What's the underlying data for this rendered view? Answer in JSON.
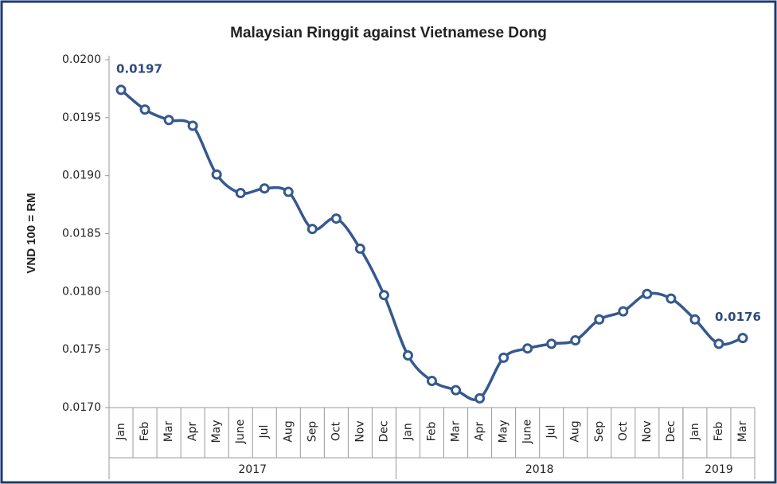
{
  "chart_data": {
    "type": "line",
    "title": "Malaysian Ringgit against Vietnamese Dong",
    "y_label": "VND 100 = RM",
    "categories": [
      "Jan",
      "Feb",
      "Mar",
      "Apr",
      "May",
      "June",
      "Jul",
      "Aug",
      "Sep",
      "Oct",
      "Nov",
      "Dec",
      "Jan",
      "Feb",
      "Mar",
      "Apr",
      "May",
      "June",
      "Jul",
      "Aug",
      "Sep",
      "Oct",
      "Nov",
      "Dec",
      "Jan",
      "Feb",
      "Mar"
    ],
    "year_groups": [
      {
        "label": "2017",
        "months": 12
      },
      {
        "label": "2018",
        "months": 12
      },
      {
        "label": "2019",
        "months": 3
      }
    ],
    "series": [
      {
        "name": "VND 100 = RM",
        "color": "#35598f",
        "values": [
          0.01974,
          0.01957,
          0.01948,
          0.01943,
          0.01901,
          0.01885,
          0.01889,
          0.01886,
          0.01854,
          0.01863,
          0.01837,
          0.01797,
          0.01745,
          0.01723,
          0.01715,
          0.01708,
          0.01743,
          0.01751,
          0.01755,
          0.01758,
          0.01776,
          0.01783,
          0.01798,
          0.01794,
          0.01776,
          0.01755,
          0.0176
        ],
        "value_labels": [
          "0.0197",
          null,
          null,
          null,
          null,
          null,
          null,
          null,
          null,
          null,
          null,
          null,
          null,
          null,
          null,
          null,
          null,
          null,
          null,
          null,
          null,
          null,
          null,
          null,
          null,
          null,
          "0.0176"
        ]
      }
    ],
    "ylim": [
      0.017,
      0.02
    ],
    "yticks": [
      {
        "value": 0.017,
        "label": "0.0170"
      },
      {
        "value": 0.0175,
        "label": "0.0175"
      },
      {
        "value": 0.018,
        "label": "0.0180"
      },
      {
        "value": 0.0185,
        "label": "0.0185"
      },
      {
        "value": 0.019,
        "label": "0.0190"
      },
      {
        "value": 0.0195,
        "label": "0.0195"
      },
      {
        "value": 0.02,
        "label": "0.0200"
      }
    ],
    "smooth": true,
    "grid": false
  }
}
